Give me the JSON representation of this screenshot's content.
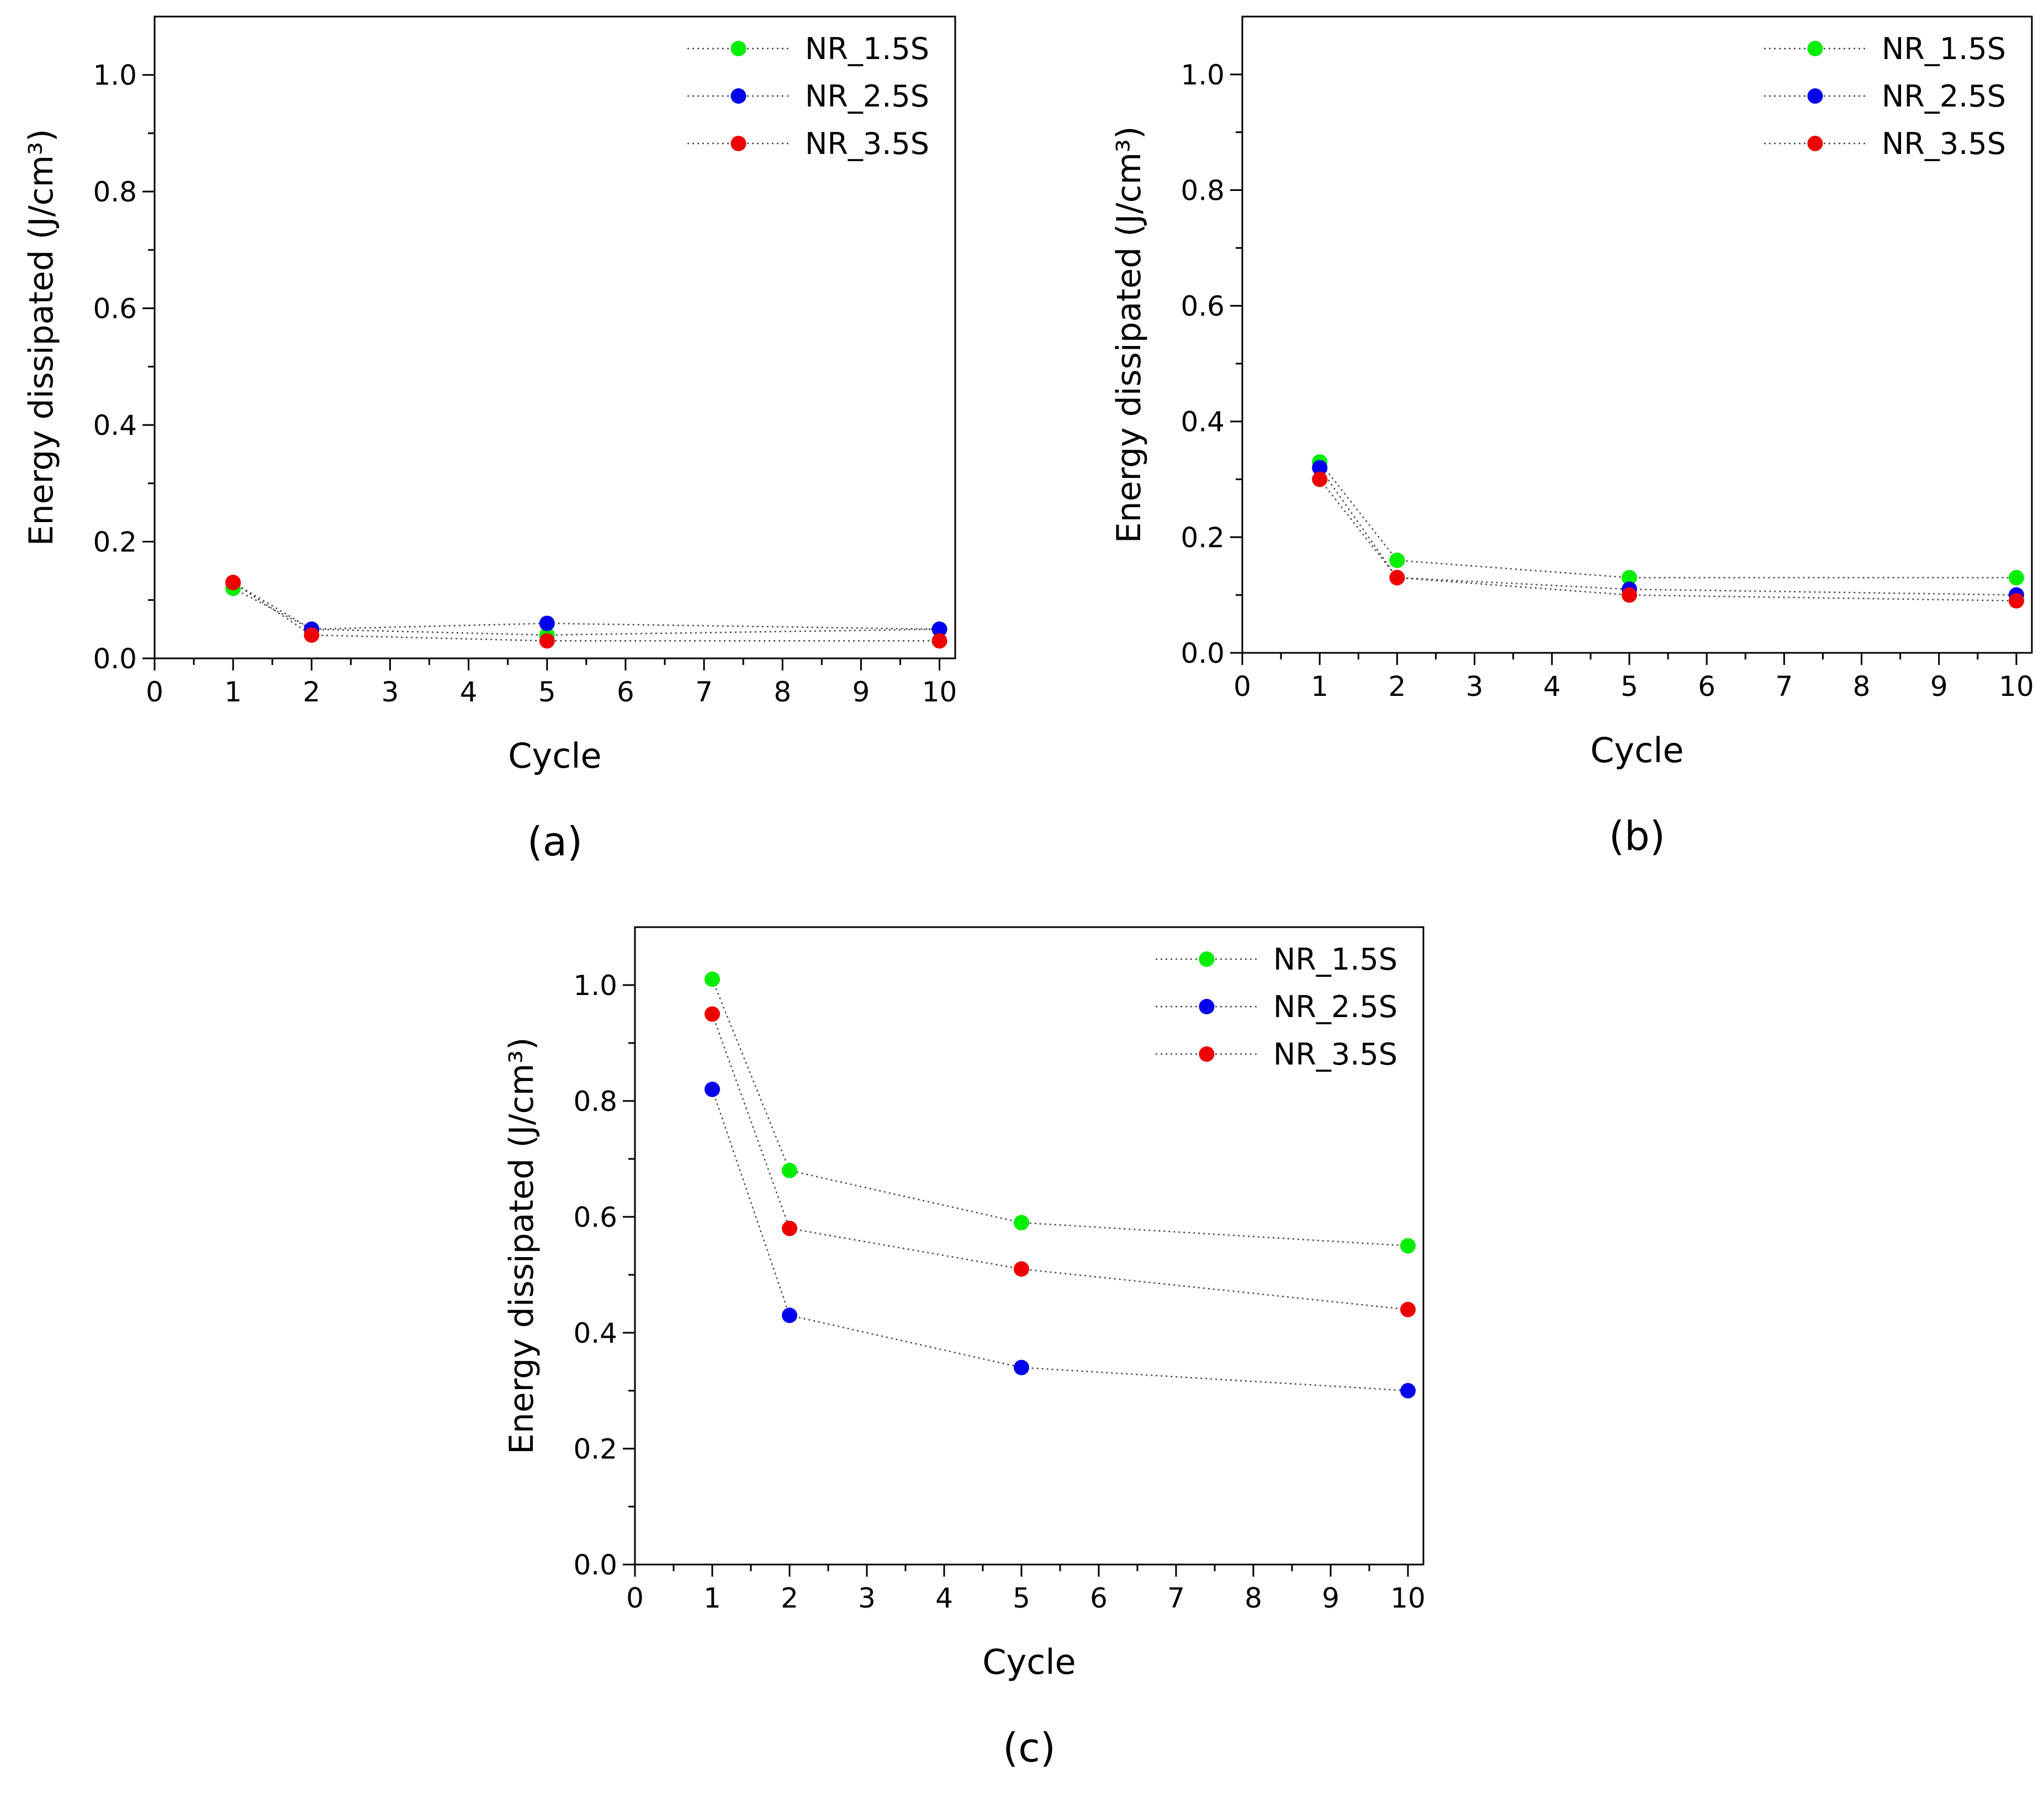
{
  "colors": {
    "NR_1.5S": "#00ee00",
    "NR_2.5S": "#0000ee",
    "NR_3.5S": "#ee0000",
    "axis": "#000000",
    "connector": "#444444"
  },
  "chart_data": [
    {
      "id": "a",
      "panel_label": "(a)",
      "type": "scatter",
      "xlabel": "Cycle",
      "ylabel": "Energy dissipated (J/cm³)",
      "xlim": [
        0,
        10.2
      ],
      "ylim": [
        0,
        1.1
      ],
      "xticks": [
        "0",
        "1",
        "2",
        "3",
        "4",
        "5",
        "6",
        "7",
        "8",
        "9",
        "10"
      ],
      "yticks": [
        "0.0",
        "0.2",
        "0.4",
        "0.6",
        "0.8",
        "1.0"
      ],
      "legend_position": "top-right",
      "x": [
        1,
        2,
        5,
        10
      ],
      "series": [
        {
          "name": "NR_1.5S",
          "values": [
            0.12,
            0.05,
            0.04,
            0.05
          ]
        },
        {
          "name": "NR_2.5S",
          "values": [
            0.13,
            0.05,
            0.06,
            0.05
          ]
        },
        {
          "name": "NR_3.5S",
          "values": [
            0.13,
            0.04,
            0.03,
            0.03
          ]
        }
      ]
    },
    {
      "id": "b",
      "panel_label": "(b)",
      "type": "scatter",
      "xlabel": "Cycle",
      "ylabel": "Energy dissipated (J/cm³)",
      "xlim": [
        0,
        10.2
      ],
      "ylim": [
        0,
        1.1
      ],
      "xticks": [
        "0",
        "1",
        "2",
        "3",
        "4",
        "5",
        "6",
        "7",
        "8",
        "9",
        "10"
      ],
      "yticks": [
        "0.0",
        "0.2",
        "0.4",
        "0.6",
        "0.8",
        "1.0"
      ],
      "legend_position": "top-right",
      "x": [
        1,
        2,
        5,
        10
      ],
      "series": [
        {
          "name": "NR_1.5S",
          "values": [
            0.33,
            0.16,
            0.13,
            0.13
          ]
        },
        {
          "name": "NR_2.5S",
          "values": [
            0.32,
            0.13,
            0.11,
            0.1
          ]
        },
        {
          "name": "NR_3.5S",
          "values": [
            0.3,
            0.13,
            0.1,
            0.09
          ]
        }
      ]
    },
    {
      "id": "c",
      "panel_label": "(c)",
      "type": "scatter",
      "xlabel": "Cycle",
      "ylabel": "Energy dissipated (J/cm³)",
      "xlim": [
        0,
        10.2
      ],
      "ylim": [
        0,
        1.1
      ],
      "xticks": [
        "0",
        "1",
        "2",
        "3",
        "4",
        "5",
        "6",
        "7",
        "8",
        "9",
        "10"
      ],
      "yticks": [
        "0.0",
        "0.2",
        "0.4",
        "0.6",
        "0.8",
        "1.0"
      ],
      "legend_position": "top-right",
      "x": [
        1,
        2,
        5,
        10
      ],
      "series": [
        {
          "name": "NR_1.5S",
          "values": [
            1.01,
            0.68,
            0.59,
            0.55
          ]
        },
        {
          "name": "NR_2.5S",
          "values": [
            0.82,
            0.43,
            0.34,
            0.3
          ]
        },
        {
          "name": "NR_3.5S",
          "values": [
            0.95,
            0.58,
            0.51,
            0.44
          ]
        }
      ]
    }
  ]
}
